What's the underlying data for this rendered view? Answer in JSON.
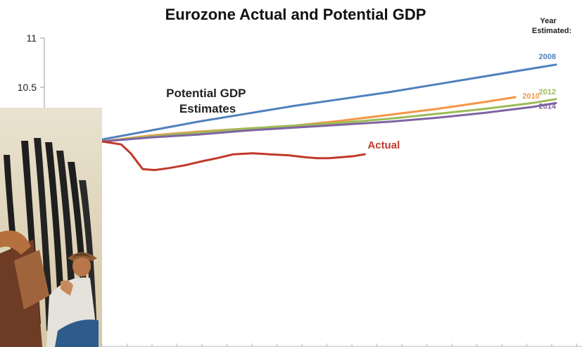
{
  "chart_data": {
    "type": "line",
    "title": "Eurozone Actual and Potential GDP",
    "annotation": "Potential GDP Estimates",
    "legend_header": [
      "Year",
      "Estimated:"
    ],
    "yticks": [
      "11",
      "10.5"
    ],
    "ylim": [
      9.3,
      11
    ],
    "xlim": [
      0,
      19
    ],
    "grid": false,
    "series": [
      {
        "name": "2008",
        "color": "#4f81bd",
        "points": [
          [
            0,
            9.97
          ],
          [
            2,
            10.06
          ],
          [
            4,
            10.15
          ],
          [
            6,
            10.23
          ],
          [
            8,
            10.31
          ],
          [
            10,
            10.38
          ],
          [
            12,
            10.45
          ],
          [
            14,
            10.53
          ],
          [
            16,
            10.61
          ],
          [
            18,
            10.69
          ],
          [
            19,
            10.73
          ]
        ]
      },
      {
        "name": "2010",
        "color": "#f79646",
        "points": [
          [
            0,
            9.95
          ],
          [
            2,
            10.01
          ],
          [
            4,
            10.05
          ],
          [
            6,
            10.08
          ],
          [
            8,
            10.11
          ],
          [
            10,
            10.16
          ],
          [
            12,
            10.22
          ],
          [
            14,
            10.28
          ],
          [
            16,
            10.35
          ],
          [
            17.3,
            10.4
          ]
        ]
      },
      {
        "name": "2012",
        "color": "#9bbb59",
        "points": [
          [
            0,
            9.95
          ],
          [
            2,
            10.0
          ],
          [
            4,
            10.04
          ],
          [
            6,
            10.08
          ],
          [
            8,
            10.11
          ],
          [
            10,
            10.14
          ],
          [
            12,
            10.18
          ],
          [
            14,
            10.23
          ],
          [
            16,
            10.28
          ],
          [
            18,
            10.34
          ],
          [
            19,
            10.38
          ]
        ]
      },
      {
        "name": "2014",
        "color": "#8064a2",
        "points": [
          [
            0,
            9.95
          ],
          [
            2,
            9.99
          ],
          [
            4,
            10.02
          ],
          [
            6,
            10.06
          ],
          [
            8,
            10.09
          ],
          [
            10,
            10.12
          ],
          [
            12,
            10.15
          ],
          [
            14,
            10.19
          ],
          [
            16,
            10.24
          ],
          [
            18,
            10.3
          ],
          [
            19,
            10.34
          ]
        ]
      },
      {
        "name": "Actual",
        "color": "#c0392b",
        "points": [
          [
            0,
            9.95
          ],
          [
            0.8,
            9.92
          ],
          [
            1.2,
            9.83
          ],
          [
            1.7,
            9.67
          ],
          [
            2.2,
            9.66
          ],
          [
            2.8,
            9.68
          ],
          [
            3.5,
            9.71
          ],
          [
            4.2,
            9.75
          ],
          [
            4.8,
            9.78
          ],
          [
            5.5,
            9.82
          ],
          [
            6.3,
            9.83
          ],
          [
            7,
            9.82
          ],
          [
            7.8,
            9.81
          ],
          [
            8.5,
            9.79
          ],
          [
            9,
            9.78
          ],
          [
            9.5,
            9.78
          ],
          [
            10,
            9.79
          ],
          [
            10.5,
            9.8
          ],
          [
            11,
            9.82
          ]
        ]
      }
    ]
  }
}
